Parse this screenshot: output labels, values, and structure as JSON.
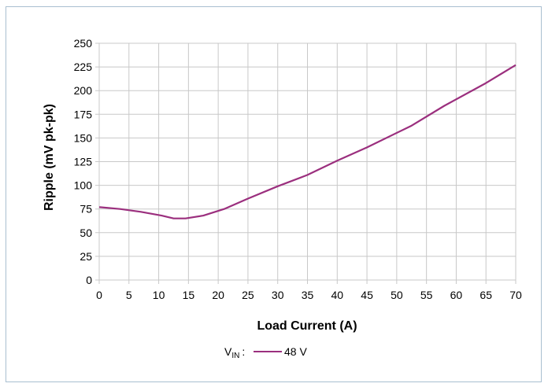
{
  "chart_data": {
    "type": "line",
    "title": "",
    "xlabel": "Load Current (A)",
    "ylabel": "Ripple (mV pk-pk)",
    "xlim": [
      0,
      70
    ],
    "ylim": [
      0,
      250
    ],
    "xticks": [
      0,
      5,
      10,
      15,
      20,
      25,
      30,
      35,
      40,
      45,
      50,
      55,
      60,
      65,
      70
    ],
    "yticks": [
      0,
      25,
      50,
      75,
      100,
      125,
      150,
      175,
      200,
      225,
      250
    ],
    "grid": true,
    "legend": {
      "position": "bottom-center",
      "prefix_main": "V",
      "prefix_sub": "IN",
      "prefix_suffix": ":"
    },
    "series": [
      {
        "name": "48 V",
        "color": "#9b2f7e",
        "x": [
          0,
          3.5,
          7,
          10.5,
          12.5,
          14.5,
          17.5,
          21,
          25,
          30,
          35,
          40,
          45,
          52.5,
          58,
          65,
          70
        ],
        "y": [
          77,
          75,
          72,
          68,
          65,
          65,
          68,
          75,
          86,
          99,
          111,
          126,
          140,
          163,
          184,
          208,
          227
        ]
      }
    ]
  }
}
